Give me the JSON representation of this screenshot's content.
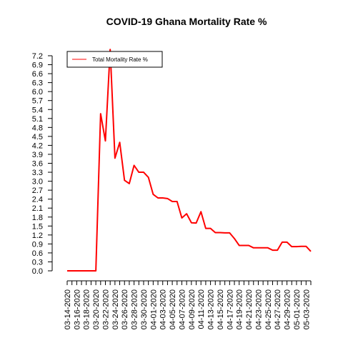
{
  "chart_data": {
    "type": "line",
    "title": "COVID-19 Ghana Mortality Rate %",
    "xlabel": "",
    "ylabel": "",
    "ylim": [
      0,
      7.2
    ],
    "y_ticks": [
      "0.0",
      "0.3",
      "0.6",
      "0.9",
      "1.2",
      "1.5",
      "1.8",
      "2.1",
      "2.4",
      "2.7",
      "3.0",
      "3.3",
      "3.6",
      "3.9",
      "4.2",
      "4.5",
      "4.8",
      "5.1",
      "5.4",
      "5.7",
      "6.0",
      "6.3",
      "6.6",
      "6.9",
      "7.2"
    ],
    "x": [
      "03-14-2020",
      "03-15-2020",
      "03-16-2020",
      "03-17-2020",
      "03-18-2020",
      "03-19-2020",
      "03-20-2020",
      "03-21-2020",
      "03-22-2020",
      "03-23-2020",
      "03-24-2020",
      "03-25-2020",
      "03-26-2020",
      "03-27-2020",
      "03-28-2020",
      "03-29-2020",
      "03-30-2020",
      "03-31-2020",
      "04-01-2020",
      "04-02-2020",
      "04-03-2020",
      "04-04-2020",
      "04-05-2020",
      "04-06-2020",
      "04-07-2020",
      "04-08-2020",
      "04-09-2020",
      "04-10-2020",
      "04-11-2020",
      "04-12-2020",
      "04-13-2020",
      "04-14-2020",
      "04-15-2020",
      "04-16-2020",
      "04-17-2020",
      "04-18-2020",
      "04-19-2020",
      "04-20-2020",
      "04-21-2020",
      "04-22-2020",
      "04-23-2020",
      "04-24-2020",
      "04-25-2020",
      "04-26-2020",
      "04-27-2020",
      "04-28-2020",
      "04-29-2020",
      "04-30-2020",
      "05-01-2020",
      "05-02-2020",
      "05-03-2020",
      "05-04-2020"
    ],
    "x_tick_labels": [
      "03-14-2020",
      "03-16-2020",
      "03-18-2020",
      "03-20-2020",
      "03-22-2020",
      "03-24-2020",
      "03-26-2020",
      "03-28-2020",
      "03-30-2020",
      "04-01-2020",
      "04-03-2020",
      "04-05-2020",
      "04-07-2020",
      "04-09-2020",
      "04-11-2020",
      "04-13-2020",
      "04-15-2020",
      "04-17-2020",
      "04-19-2020",
      "04-21-2020",
      "04-23-2020",
      "04-25-2020",
      "04-27-2020",
      "04-29-2020",
      "05-01-2020",
      "05-03-2020"
    ],
    "series": [
      {
        "name": "Total Mortality Rate %",
        "color": "#ff0000",
        "values": [
          0,
          0,
          0,
          0,
          0,
          0,
          0,
          5.26,
          4.35,
          7.41,
          3.77,
          4.3,
          3.03,
          2.92,
          3.53,
          3.3,
          3.3,
          3.13,
          2.56,
          2.44,
          2.44,
          2.42,
          2.32,
          2.32,
          1.77,
          1.91,
          1.61,
          1.6,
          1.98,
          1.42,
          1.42,
          1.28,
          1.28,
          1.27,
          1.27,
          1.08,
          0.85,
          0.85,
          0.85,
          0.77,
          0.77,
          0.77,
          0.77,
          0.69,
          0.69,
          0.96,
          0.96,
          0.81,
          0.81,
          0.82,
          0.82,
          0.65
        ]
      }
    ],
    "legend_position": "top-left",
    "grid": false
  }
}
